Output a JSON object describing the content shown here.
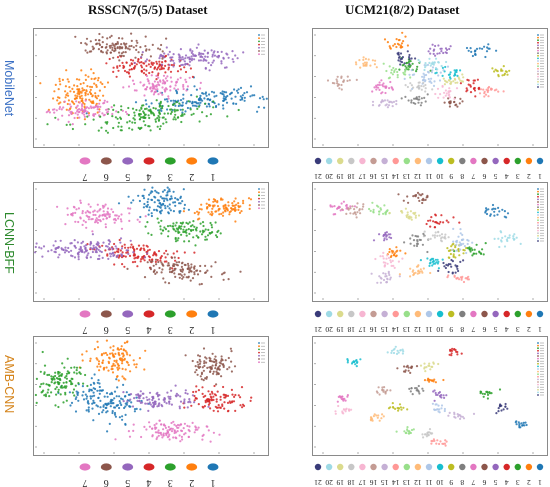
{
  "titles": {
    "left": "RSSCN7(5/5) Dataset",
    "right": "UCM21(8/2) Dataset"
  },
  "row_labels": [
    "MobileNet",
    "LCNN-BFF",
    "AMB-CNN"
  ],
  "row_label_colors": [
    "#3a6fc4",
    "#2e8a2e",
    "#d4831a"
  ],
  "palette": [
    "#1f77b4",
    "#ff7f0e",
    "#2ca02c",
    "#d62728",
    "#9467bd",
    "#8c564b",
    "#e377c2",
    "#7f7f7f",
    "#bcbd22",
    "#17becf",
    "#aec7e8",
    "#ffbb78",
    "#98df8a",
    "#ff9896",
    "#c5b0d5",
    "#c49c94",
    "#f7b6d2",
    "#c7c7c7",
    "#dbdb8d",
    "#9edae5",
    "#393b79"
  ],
  "legend_left": [
    "7",
    "6",
    "5",
    "4",
    "3",
    "2",
    "1"
  ],
  "legend_right": [
    "21",
    "20",
    "19",
    "18",
    "17",
    "16",
    "15",
    "14",
    "13",
    "12",
    "11",
    "10",
    "9",
    "8",
    "7",
    "6",
    "5",
    "4",
    "3",
    "2",
    "1"
  ],
  "chart_data": [
    {
      "type": "scatter",
      "title": "MobileNet - RSSCN7(5/5)",
      "series": [
        {
          "name": "1",
          "clusters": [
            [
              0.78,
              0.62,
              0.14,
              0.05,
              -0.12
            ]
          ]
        },
        {
          "name": "2",
          "clusters": [
            [
              0.17,
              0.55,
              0.07,
              0.1,
              0.2
            ]
          ]
        },
        {
          "name": "3",
          "clusters": [
            [
              0.5,
              0.78,
              0.15,
              0.06,
              -0.18
            ]
          ]
        },
        {
          "name": "4",
          "clusters": [
            [
              0.48,
              0.3,
              0.09,
              0.05,
              0
            ]
          ]
        },
        {
          "name": "5",
          "clusters": [
            [
              0.72,
              0.22,
              0.1,
              0.05,
              0
            ]
          ]
        },
        {
          "name": "6",
          "clusters": [
            [
              0.35,
              0.12,
              0.09,
              0.05,
              0.05
            ]
          ]
        },
        {
          "name": "7",
          "clusters": [
            [
              0.55,
              0.48,
              0.07,
              0.05,
              0.05
            ],
            [
              0.2,
              0.72,
              0.08,
              0.04,
              -0.1
            ]
          ]
        }
      ]
    },
    {
      "type": "scatter",
      "title": "MobileNet - UCM21(8/2)",
      "series": [
        {
          "name": "1",
          "clusters": [
            [
              0.75,
              0.15,
              0.03,
              0.03,
              0
            ]
          ]
        },
        {
          "name": "2",
          "clusters": [
            [
              0.35,
              0.08,
              0.03,
              0.03,
              0
            ]
          ]
        },
        {
          "name": "3",
          "clusters": [
            [
              0.42,
              0.3,
              0.03,
              0.04,
              0
            ]
          ]
        },
        {
          "name": "4",
          "clusters": [
            [
              0.72,
              0.5,
              0.02,
              0.04,
              0
            ]
          ]
        },
        {
          "name": "5",
          "clusters": [
            [
              0.55,
              0.15,
              0.03,
              0.03,
              0
            ]
          ]
        },
        {
          "name": "6",
          "clusters": [
            [
              0.62,
              0.65,
              0.02,
              0.03,
              0
            ]
          ]
        },
        {
          "name": "7",
          "clusters": [
            [
              0.28,
              0.5,
              0.03,
              0.04,
              0
            ]
          ]
        },
        {
          "name": "8",
          "clusters": [
            [
              0.45,
              0.62,
              0.03,
              0.03,
              0
            ]
          ]
        },
        {
          "name": "9",
          "clusters": [
            [
              0.85,
              0.35,
              0.03,
              0.02,
              0
            ]
          ]
        },
        {
          "name": "10",
          "clusters": [
            [
              0.6,
              0.35,
              0.03,
              0.03,
              0
            ]
          ]
        },
        {
          "name": "11",
          "clusters": [
            [
              0.5,
              0.4,
              0.04,
              0.06,
              0
            ]
          ]
        },
        {
          "name": "12",
          "clusters": [
            [
              0.2,
              0.28,
              0.03,
              0.03,
              0
            ]
          ]
        },
        {
          "name": "13",
          "clusters": [
            [
              0.35,
              0.35,
              0.03,
              0.03,
              0
            ]
          ]
        },
        {
          "name": "14",
          "clusters": [
            [
              0.8,
              0.55,
              0.03,
              0.03,
              0
            ]
          ]
        },
        {
          "name": "15",
          "clusters": [
            [
              0.3,
              0.65,
              0.03,
              0.03,
              0
            ]
          ]
        },
        {
          "name": "16",
          "clusters": [
            [
              0.08,
              0.45,
              0.03,
              0.03,
              0
            ]
          ]
        },
        {
          "name": "17",
          "clusters": [
            [
              0.58,
              0.55,
              0.03,
              0.03,
              0
            ]
          ]
        },
        {
          "name": "18",
          "clusters": [
            [
              0.45,
              0.5,
              0.03,
              0.03,
              0
            ]
          ]
        },
        {
          "name": "19",
          "clusters": [
            [
              0.62,
              0.45,
              0.03,
              0.03,
              0
            ]
          ]
        },
        {
          "name": "20",
          "clusters": [
            [
              0.52,
              0.28,
              0.03,
              0.03,
              0
            ]
          ]
        },
        {
          "name": "21",
          "clusters": [
            [
              0.38,
              0.22,
              0.03,
              0.03,
              0
            ]
          ]
        }
      ]
    },
    {
      "type": "scatter",
      "title": "LCNN-BFF - RSSCN7(5/5)",
      "series": [
        {
          "name": "1",
          "clusters": [
            [
              0.55,
              0.12,
              0.06,
              0.07,
              0
            ]
          ]
        },
        {
          "name": "2",
          "clusters": [
            [
              0.85,
              0.18,
              0.07,
              0.05,
              -0.2
            ]
          ]
        },
        {
          "name": "3",
          "clusters": [
            [
              0.68,
              0.4,
              0.08,
              0.05,
              0.15
            ]
          ]
        },
        {
          "name": "4",
          "clusters": [
            [
              0.45,
              0.62,
              0.1,
              0.05,
              0.25
            ]
          ]
        },
        {
          "name": "5",
          "clusters": [
            [
              0.22,
              0.58,
              0.13,
              0.05,
              0.1
            ]
          ]
        },
        {
          "name": "6",
          "clusters": [
            [
              0.65,
              0.78,
              0.09,
              0.05,
              0.1
            ]
          ]
        },
        {
          "name": "7",
          "clusters": [
            [
              0.25,
              0.25,
              0.08,
              0.05,
              0.05
            ]
          ]
        }
      ]
    },
    {
      "type": "scatter",
      "title": "LCNN-BFF - UCM21(8/2)",
      "series": [
        {
          "name": "1",
          "clusters": [
            [
              0.82,
              0.22,
              0.03,
              0.03,
              0
            ]
          ]
        },
        {
          "name": "2",
          "clusters": [
            [
              0.35,
              0.62,
              0.02,
              0.03,
              0
            ]
          ]
        },
        {
          "name": "3",
          "clusters": [
            [
              0.72,
              0.6,
              0.03,
              0.03,
              0
            ]
          ]
        },
        {
          "name": "4",
          "clusters": [
            [
              0.55,
              0.32,
              0.03,
              0.03,
              0
            ]
          ]
        },
        {
          "name": "5",
          "clusters": [
            [
              0.3,
              0.45,
              0.02,
              0.03,
              0
            ]
          ]
        },
        {
          "name": "6",
          "clusters": [
            [
              0.45,
              0.08,
              0.03,
              0.03,
              0
            ]
          ]
        },
        {
          "name": "7",
          "clusters": [
            [
              0.08,
              0.18,
              0.03,
              0.03,
              0
            ]
          ]
        },
        {
          "name": "8",
          "clusters": [
            [
              0.45,
              0.5,
              0.02,
              0.04,
              0
            ]
          ]
        },
        {
          "name": "9",
          "clusters": [
            [
              0.62,
              0.6,
              0.03,
              0.04,
              0
            ]
          ]
        },
        {
          "name": "10",
          "clusters": [
            [
              0.52,
              0.7,
              0.03,
              0.03,
              0
            ]
          ]
        },
        {
          "name": "11",
          "clusters": [
            [
              0.65,
              0.5,
              0.03,
              0.05,
              0
            ]
          ]
        },
        {
          "name": "12",
          "clusters": [
            [
              0.45,
              0.8,
              0.03,
              0.03,
              0
            ]
          ]
        },
        {
          "name": "13",
          "clusters": [
            [
              0.28,
              0.2,
              0.03,
              0.03,
              0
            ]
          ]
        },
        {
          "name": "14",
          "clusters": [
            [
              0.65,
              0.85,
              0.03,
              0.02,
              0
            ]
          ]
        },
        {
          "name": "15",
          "clusters": [
            [
              0.3,
              0.85,
              0.03,
              0.03,
              0
            ]
          ]
        },
        {
          "name": "16",
          "clusters": [
            [
              0.15,
              0.2,
              0.03,
              0.03,
              0
            ]
          ]
        },
        {
          "name": "17",
          "clusters": [
            [
              0.3,
              0.7,
              0.03,
              0.03,
              0
            ]
          ]
        },
        {
          "name": "18",
          "clusters": [
            [
              0.55,
              0.45,
              0.03,
              0.03,
              0
            ]
          ]
        },
        {
          "name": "19",
          "clusters": [
            [
              0.42,
              0.25,
              0.03,
              0.03,
              0
            ]
          ]
        },
        {
          "name": "20",
          "clusters": [
            [
              0.88,
              0.48,
              0.03,
              0.03,
              0
            ]
          ]
        },
        {
          "name": "21",
          "clusters": [
            [
              0.6,
              0.75,
              0.03,
              0.03,
              0
            ]
          ]
        }
      ]
    },
    {
      "type": "scatter",
      "title": "AMB-CNN - RSSCN7(5/5)",
      "series": [
        {
          "name": "1",
          "clusters": [
            [
              0.28,
              0.55,
              0.07,
              0.12,
              -0.5
            ]
          ]
        },
        {
          "name": "2",
          "clusters": [
            [
              0.35,
              0.15,
              0.06,
              0.08,
              0
            ]
          ]
        },
        {
          "name": "3",
          "clusters": [
            [
              0.07,
              0.38,
              0.06,
              0.09,
              0.4
            ]
          ]
        },
        {
          "name": "4",
          "clusters": [
            [
              0.82,
              0.55,
              0.07,
              0.05,
              0
            ]
          ]
        },
        {
          "name": "5",
          "clusters": [
            [
              0.55,
              0.55,
              0.08,
              0.05,
              0
            ]
          ]
        },
        {
          "name": "6",
          "clusters": [
            [
              0.8,
              0.22,
              0.05,
              0.07,
              0
            ]
          ]
        },
        {
          "name": "7",
          "clusters": [
            [
              0.6,
              0.85,
              0.09,
              0.05,
              0
            ]
          ]
        }
      ]
    },
    {
      "type": "scatter",
      "title": "AMB-CNN - UCM21(8/2)",
      "series": [
        {
          "name": "1",
          "clusters": [
            [
              0.95,
              0.78,
              0.02,
              0.02,
              0
            ]
          ]
        },
        {
          "name": "2",
          "clusters": [
            [
              0.52,
              0.35,
              0.02,
              0.02,
              0
            ]
          ]
        },
        {
          "name": "3",
          "clusters": [
            [
              0.78,
              0.48,
              0.02,
              0.02,
              0
            ]
          ]
        },
        {
          "name": "4",
          "clusters": [
            [
              0.62,
              0.08,
              0.02,
              0.02,
              0
            ]
          ]
        },
        {
          "name": "5",
          "clusters": [
            [
              0.55,
              0.5,
              0.02,
              0.02,
              0
            ]
          ]
        },
        {
          "name": "6",
          "clusters": [
            [
              0.4,
              0.25,
              0.02,
              0.02,
              0
            ]
          ]
        },
        {
          "name": "7",
          "clusters": [
            [
              0.08,
              0.52,
              0.02,
              0.02,
              0
            ]
          ]
        },
        {
          "name": "8",
          "clusters": [
            [
              0.45,
              0.45,
              0.02,
              0.02,
              0
            ]
          ]
        },
        {
          "name": "9",
          "clusters": [
            [
              0.35,
              0.62,
              0.02,
              0.02,
              0
            ]
          ]
        },
        {
          "name": "10",
          "clusters": [
            [
              0.15,
              0.18,
              0.02,
              0.02,
              0
            ]
          ]
        },
        {
          "name": "11",
          "clusters": [
            [
              0.55,
              0.62,
              0.02,
              0.02,
              0
            ]
          ]
        },
        {
          "name": "12",
          "clusters": [
            [
              0.25,
              0.72,
              0.02,
              0.02,
              0
            ]
          ]
        },
        {
          "name": "13",
          "clusters": [
            [
              0.4,
              0.85,
              0.02,
              0.02,
              0
            ]
          ]
        },
        {
          "name": "14",
          "clusters": [
            [
              0.55,
              0.95,
              0.02,
              0.02,
              0
            ]
          ]
        },
        {
          "name": "15",
          "clusters": [
            [
              0.65,
              0.7,
              0.02,
              0.02,
              0
            ]
          ]
        },
        {
          "name": "16",
          "clusters": [
            [
              0.28,
              0.45,
              0.02,
              0.02,
              0
            ]
          ]
        },
        {
          "name": "17",
          "clusters": [
            [
              0.1,
              0.65,
              0.02,
              0.02,
              0
            ]
          ]
        },
        {
          "name": "18",
          "clusters": [
            [
              0.5,
              0.88,
              0.02,
              0.02,
              0
            ]
          ]
        },
        {
          "name": "19",
          "clusters": [
            [
              0.5,
              0.22,
              0.02,
              0.02,
              0
            ]
          ]
        },
        {
          "name": "20",
          "clusters": [
            [
              0.35,
              0.08,
              0.02,
              0.02,
              0
            ]
          ]
        },
        {
          "name": "21",
          "clusters": [
            [
              0.85,
              0.62,
              0.02,
              0.02,
              0
            ]
          ]
        }
      ]
    }
  ]
}
